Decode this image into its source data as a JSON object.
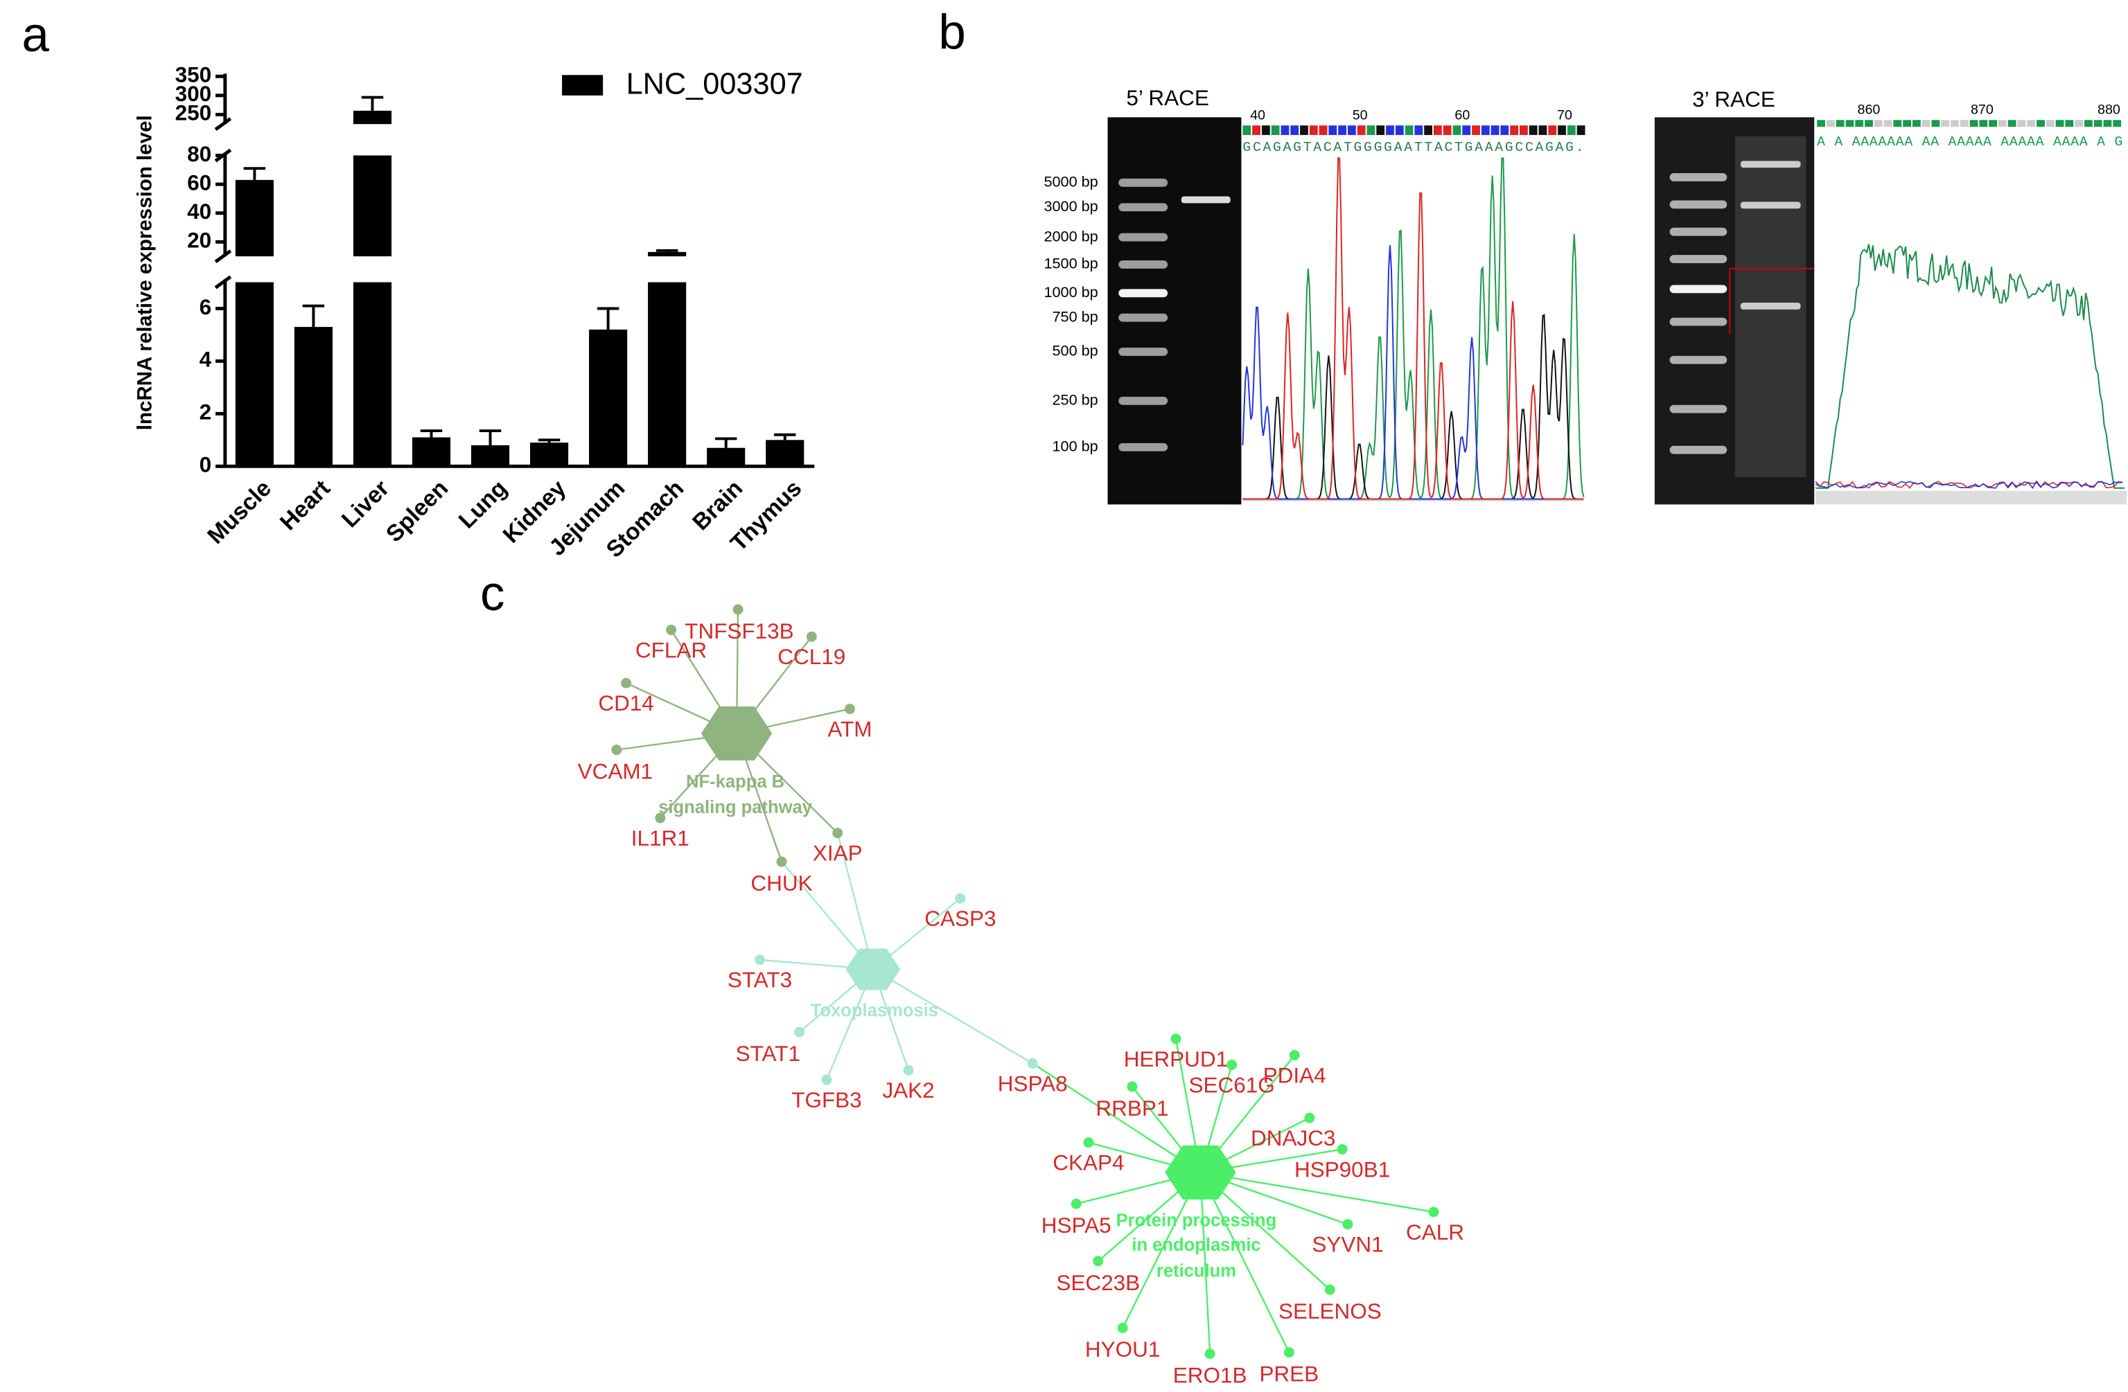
{
  "panel_labels": [
    "a",
    "b",
    "c"
  ],
  "chart_data": {
    "type": "bar",
    "ylabel": "lncRNA relative expression level",
    "categories": [
      "Muscle",
      "Heart",
      "Liver",
      "Spleen",
      "Lung",
      "Kidney",
      "Jejunum",
      "Stomach",
      "Brain",
      "Thymus"
    ],
    "series": [
      {
        "name": "LNC_003307",
        "color": "#000000",
        "values": [
          63,
          5.3,
          260,
          1.1,
          0.8,
          0.9,
          5.2,
          13,
          0.7,
          1.0
        ],
        "errors": [
          8,
          0.8,
          35,
          0.25,
          0.55,
          0.1,
          0.8,
          1,
          0.35,
          0.2
        ]
      }
    ],
    "y_segments": [
      {
        "ylim": [
          0,
          7
        ],
        "yticks": [
          0,
          2,
          4,
          6
        ]
      },
      {
        "ylim": [
          10,
          80
        ],
        "yticks": [
          20,
          40,
          60,
          80
        ]
      },
      {
        "ylim": [
          225,
          350
        ],
        "yticks": [
          250,
          300,
          350
        ]
      }
    ],
    "legend": "upper right"
  },
  "race": {
    "five_prime": {
      "title": "5’ RACE",
      "ladder": [
        "5000 bp",
        "3000 bp",
        "2000 bp",
        "1500 bp",
        "1000 bp",
        "750 bp",
        "500 bp",
        "250 bp",
        "100 bp"
      ],
      "positions": [
        "40",
        "50",
        "60",
        "70"
      ],
      "sequence": "GCAGAGTACATGGGGAATTACTGAAAGCCAGAG."
    },
    "three_prime": {
      "title": "3’ RACE",
      "positions": [
        "860",
        "870",
        "880"
      ],
      "sequence": "A A AAAAAAA AA AAAAA AAAAA AAAA A G"
    }
  },
  "network": {
    "gene_color": "#d42a2a",
    "hubs": [
      {
        "label_lines": [
          "NF-kappa B",
          "signaling pathway"
        ],
        "color": "#8fb47f",
        "genes": [
          "TNFSF13B",
          "CFLAR",
          "CCL19",
          "CD14",
          "ATM",
          "VCAM1",
          "IL1R1",
          "XIAP",
          "CHUK"
        ]
      },
      {
        "label_lines": [
          "Toxoplasmosis"
        ],
        "color": "#a6e6d3",
        "genes": [
          "CASP3",
          "STAT3",
          "STAT1",
          "TGFB3",
          "JAK2",
          "HSPA8"
        ]
      },
      {
        "label_lines": [
          "Protein processing",
          "in endoplasmic",
          "reticulum"
        ],
        "color": "#4cee68",
        "genes": [
          "HERPUD1",
          "SEC61G",
          "PDIA4",
          "RRBP1",
          "DNAJC3",
          "CKAP4",
          "HSP90B1",
          "HSPA5",
          "SYVN1",
          "CALR",
          "SEC23B",
          "SELENOS",
          "HYOU1",
          "ERO1B",
          "PREB"
        ]
      }
    ]
  }
}
